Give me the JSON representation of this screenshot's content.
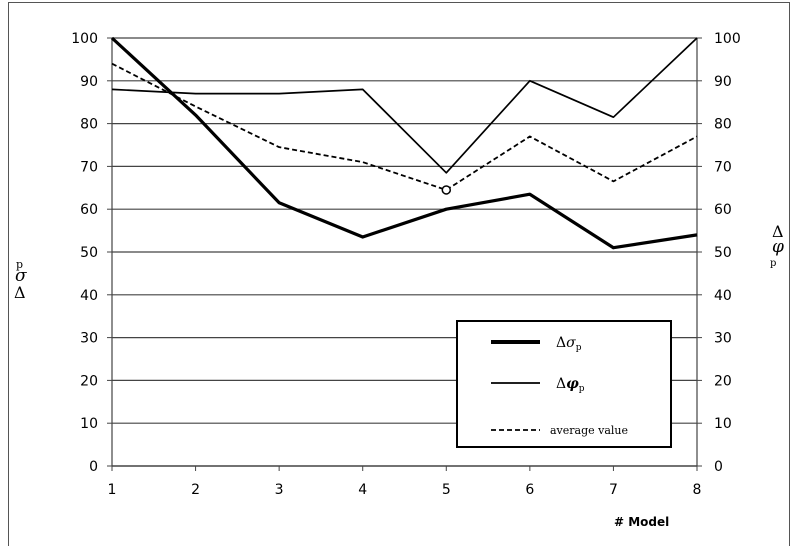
{
  "chart_data": {
    "type": "line",
    "x": [
      1,
      2,
      3,
      4,
      5,
      6,
      7,
      8
    ],
    "xlabel": "# Model",
    "ylabel_left": {
      "main": "Δ",
      "sym": "σ",
      "sub": "p"
    },
    "ylabel_right": {
      "main": "Δ",
      "sym": "φ",
      "sub": "p"
    },
    "ylim": [
      0,
      100
    ],
    "y2lim": [
      0,
      100
    ],
    "yticks": [
      "0",
      "10",
      "20",
      "30",
      "40",
      "50",
      "60",
      "70",
      "80",
      "90",
      "100"
    ],
    "xticks": [
      "1",
      "2",
      "3",
      "4",
      "5",
      "6",
      "7",
      "8"
    ],
    "grid": true,
    "legend_position": "bottom-right",
    "series": [
      {
        "key": "sigma",
        "legend_main": "Δ",
        "legend_sym": "σ",
        "legend_sub": "p",
        "style": "thick",
        "values": [
          100,
          82,
          61.5,
          53.5,
          60,
          63.5,
          51,
          54
        ]
      },
      {
        "key": "phi",
        "legend_main": "Δ",
        "legend_sym": "φ",
        "legend_sub": "p",
        "style": "thin",
        "values": [
          88,
          87,
          87,
          88,
          68.5,
          90,
          81.5,
          100
        ]
      },
      {
        "key": "avg",
        "legend_label": "average value",
        "style": "dashed",
        "values": [
          94,
          84,
          74.5,
          71,
          64.5,
          77,
          66.5,
          77
        ]
      }
    ],
    "marker": {
      "x": 5,
      "y": 64.5
    }
  }
}
